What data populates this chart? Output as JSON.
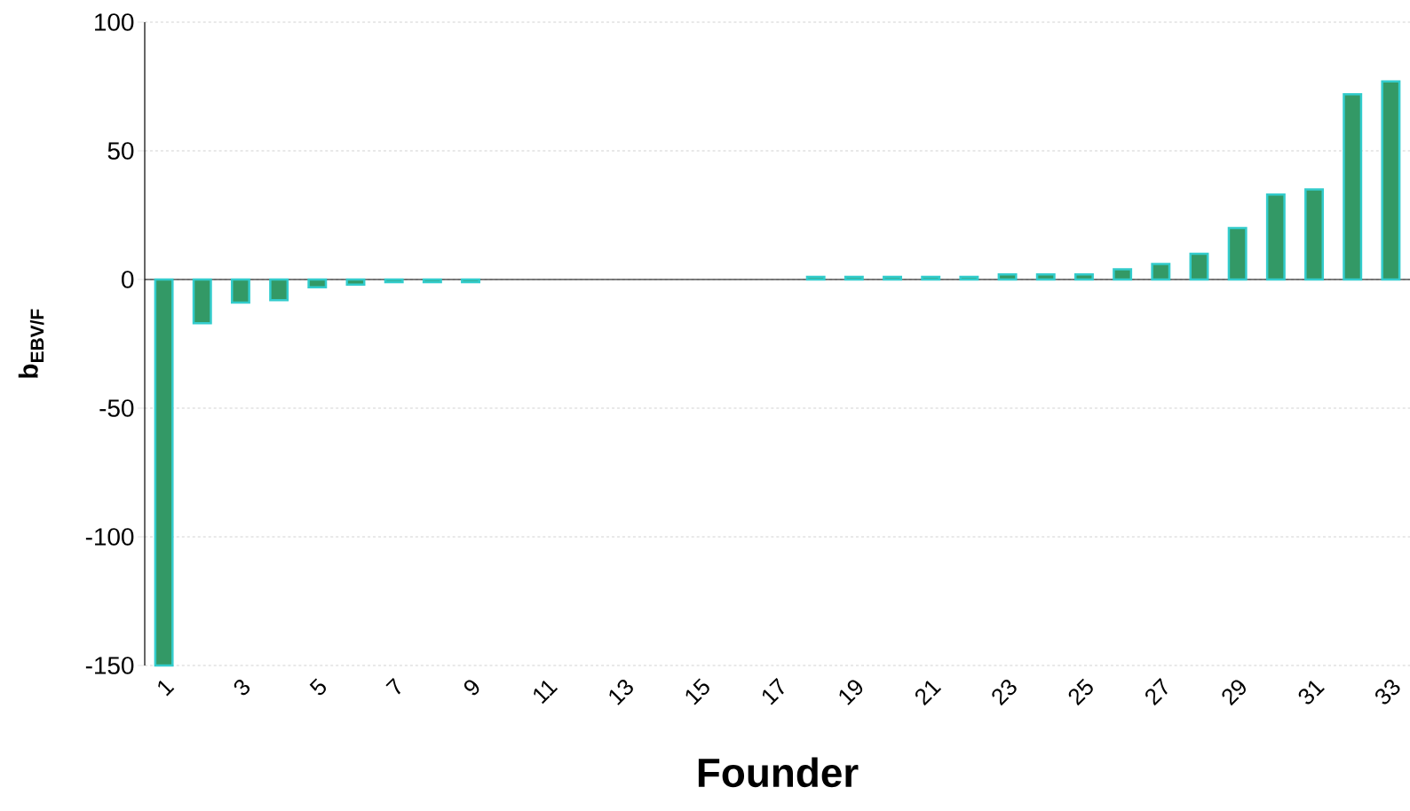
{
  "chart_data": {
    "type": "bar",
    "xlabel": "Founder",
    "ylabel": "b$_{EBV/F}$",
    "categories": [
      "1",
      null,
      "3",
      null,
      "5",
      null,
      "7",
      null,
      "9",
      null,
      "11",
      null,
      "13",
      null,
      "15",
      null,
      "17",
      null,
      "19",
      null,
      "21",
      null,
      "23",
      null,
      "25",
      null,
      "27",
      null,
      "29",
      null,
      "31",
      null,
      "33"
    ],
    "values": [
      -150,
      -17,
      -9,
      -8,
      -3,
      -2,
      -1,
      -1,
      -1,
      null,
      null,
      null,
      null,
      null,
      null,
      null,
      null,
      1,
      1,
      1,
      1,
      1,
      2,
      2,
      2,
      4,
      6,
      10,
      20,
      33,
      35,
      72,
      77
    ],
    "color": "#339966",
    "ylim": [
      -150,
      100
    ],
    "yticks": [
      -150,
      -100,
      -50,
      0,
      50,
      100
    ],
    "grid": "y"
  }
}
